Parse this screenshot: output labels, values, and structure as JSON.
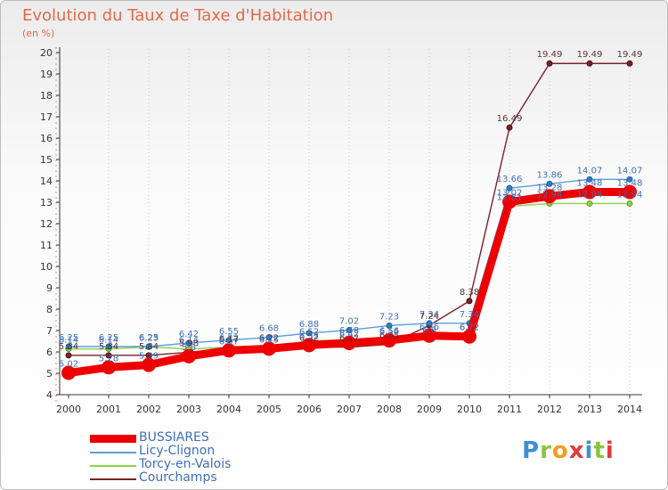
{
  "header": {
    "title": "Evolution du Taux de Taxe d'Habitation",
    "subtitle": "(en %)"
  },
  "brand": {
    "text": "Proxiti",
    "letter_colors": [
      "#3f8fd2",
      "#8ac43f",
      "#f39c1e",
      "#e23b3b",
      "#3f8fd2",
      "#8ac43f",
      "#e23b3b"
    ]
  },
  "chart_data": {
    "type": "line",
    "title": "Evolution du Taux de Taxe d'Habitation",
    "ylabel": "(en %)",
    "xlabel": "",
    "x": [
      "2000",
      "2001",
      "2002",
      "2003",
      "2004",
      "2005",
      "2006",
      "2007",
      "2008",
      "2009",
      "2010",
      "2011",
      "2012",
      "2013",
      "2014"
    ],
    "ylim": [
      4,
      20
    ],
    "yticks": [
      4,
      5,
      6,
      7,
      8,
      9,
      10,
      11,
      12,
      13,
      14,
      15,
      16,
      17,
      18,
      19,
      20
    ],
    "grid": "vertical-dotted",
    "legend_position": "bottom-left",
    "series": [
      {
        "name": "BUSSIARES",
        "color": "#ee0000",
        "values": [
          5.02,
          5.28,
          5.39,
          5.8,
          6.07,
          6.15,
          6.32,
          6.42,
          6.54,
          6.76,
          6.72,
          13.02,
          13.28,
          13.48,
          13.48
        ]
      },
      {
        "name": "Licy-Clignon",
        "color": "#5b9fd6",
        "values": [
          6.25,
          6.25,
          6.25,
          6.42,
          6.55,
          6.68,
          6.88,
          7.02,
          7.23,
          7.34,
          7.34,
          13.66,
          13.86,
          14.07,
          14.07
        ]
      },
      {
        "name": "Torcy-en-Valois",
        "color": "#8fd147",
        "values": [
          6.14,
          6.14,
          6.23,
          6.14,
          6.22,
          6.22,
          6.52,
          6.58,
          6.56,
          6.6,
          6.72,
          12.81,
          12.94,
          12.94,
          12.94
        ]
      },
      {
        "name": "Courchamps",
        "color": "#7b2128",
        "values": [
          5.84,
          5.84,
          5.84,
          5.98,
          6.17,
          6.22,
          6.22,
          6.22,
          6.35,
          7.24,
          8.38,
          16.49,
          19.49,
          19.49,
          19.49
        ]
      }
    ]
  }
}
